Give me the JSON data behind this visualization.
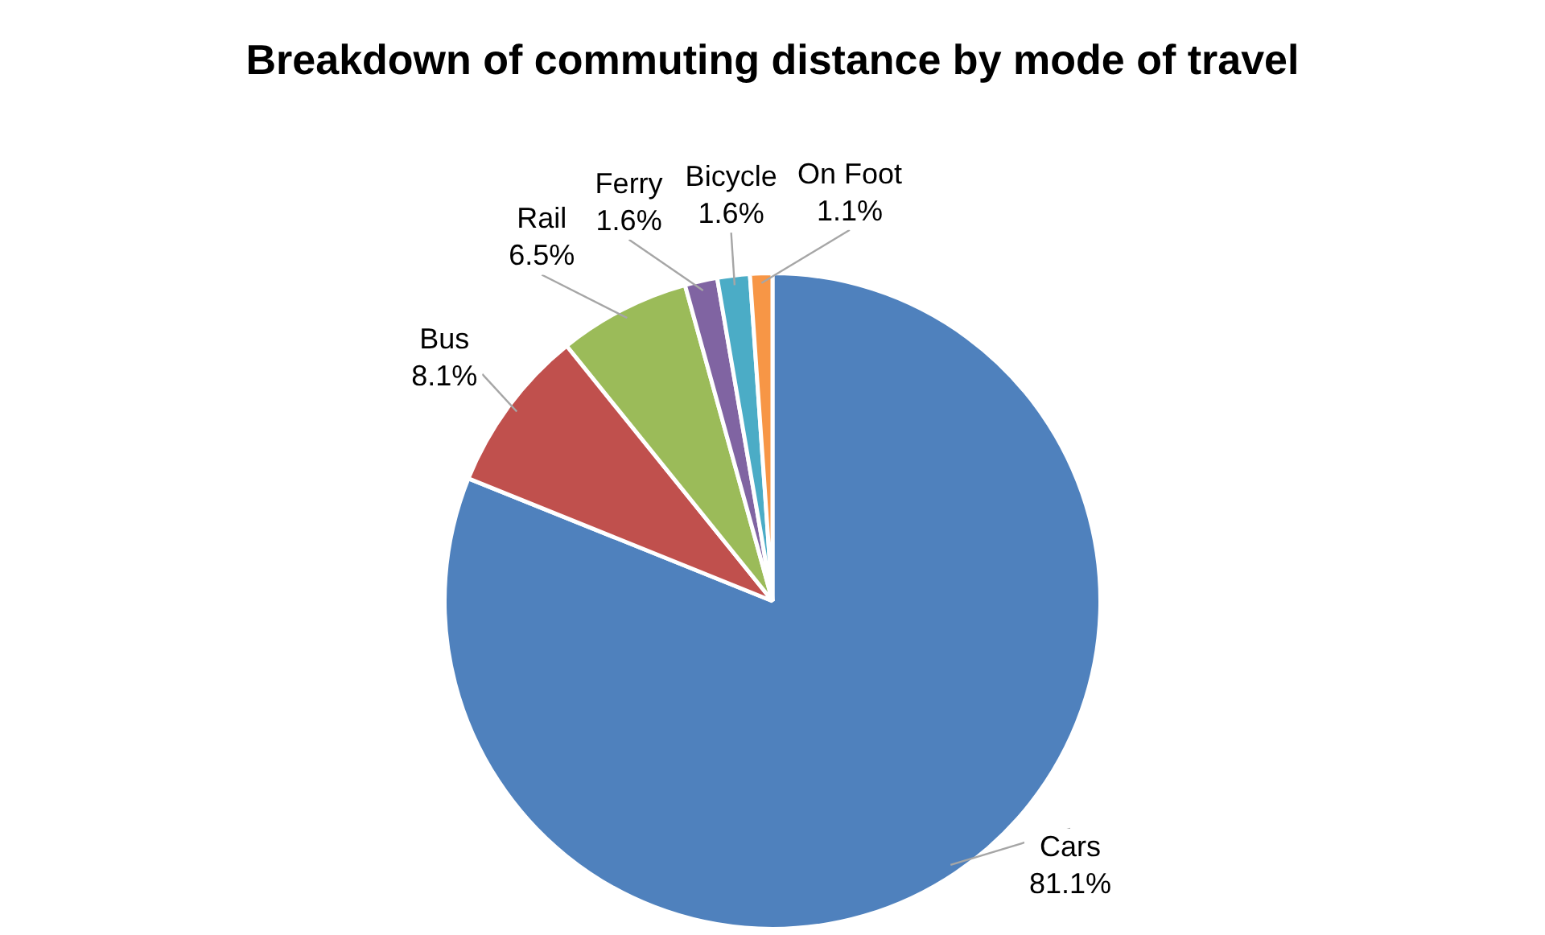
{
  "chart_data": {
    "type": "pie",
    "title": "Breakdown of commuting distance by mode of travel",
    "categories": [
      "Cars",
      "Bus",
      "Rail",
      "Ferry",
      "Bicycle",
      "On Foot"
    ],
    "values": [
      81.1,
      8.1,
      6.5,
      1.6,
      1.6,
      1.1
    ],
    "colors": [
      "#4f81bd",
      "#c0504d",
      "#9bbb59",
      "#8064a2",
      "#4bacc6",
      "#f79646"
    ],
    "value_labels": [
      "81.1%",
      "8.1%",
      "6.5%",
      "1.6%",
      "1.6%",
      "1.1%"
    ]
  }
}
